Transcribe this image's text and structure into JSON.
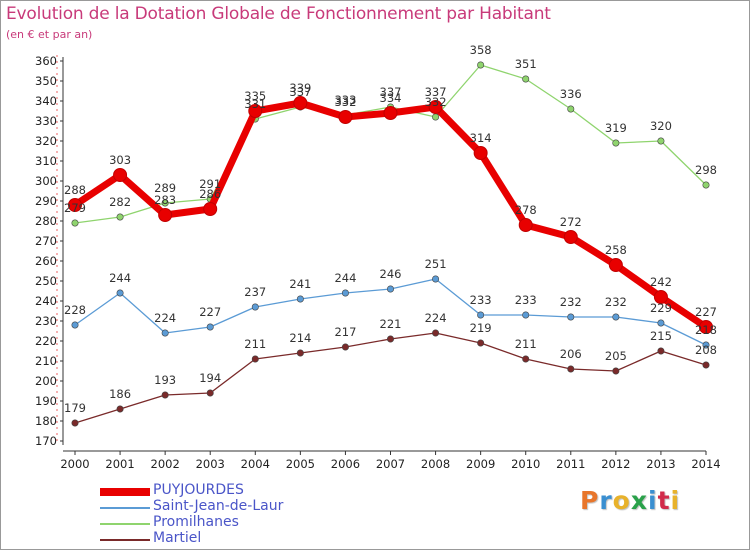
{
  "title": "Evolution de la Dotation Globale de Fonctionnement par Habitant",
  "subtitle": "(en € et par an)",
  "logo": {
    "text": "Proxiti",
    "colors": [
      "#e8762b",
      "#3a8fd1",
      "#e8b22b",
      "#2aa14a",
      "#3a8fd1",
      "#d12b4a",
      "#e8b22b"
    ]
  },
  "chart_data": {
    "type": "line",
    "x": [
      2000,
      2001,
      2002,
      2003,
      2004,
      2005,
      2006,
      2007,
      2008,
      2009,
      2010,
      2011,
      2012,
      2013,
      2014
    ],
    "ylim": [
      170,
      360
    ],
    "yticks": [
      170,
      180,
      190,
      200,
      210,
      220,
      230,
      240,
      250,
      260,
      270,
      280,
      290,
      300,
      310,
      320,
      330,
      340,
      350,
      360
    ],
    "grid": false,
    "legend_position": "bottom-left",
    "series": [
      {
        "name": "Martiel",
        "color": "#7a2a2a",
        "values": [
          179,
          186,
          193,
          194,
          211,
          214,
          217,
          221,
          224,
          219,
          211,
          206,
          205,
          215,
          208
        ]
      },
      {
        "name": "Saint-Jean-de-Laur",
        "color": "#5b9bd5",
        "values": [
          228,
          244,
          224,
          227,
          237,
          241,
          244,
          246,
          251,
          233,
          233,
          232,
          232,
          229,
          218
        ]
      },
      {
        "name": "Promilhanes",
        "color": "#8fd46e",
        "values": [
          279,
          282,
          289,
          291,
          331,
          337,
          333,
          337,
          332,
          358,
          351,
          336,
          319,
          320,
          298
        ]
      },
      {
        "name": "PUYJOURDES",
        "color": "#e80000",
        "values": [
          288,
          303,
          283,
          286,
          335,
          339,
          332,
          334,
          337,
          314,
          278,
          272,
          258,
          242,
          227
        ]
      }
    ],
    "legend_order": [
      "PUYJOURDES",
      "Saint-Jean-de-Laur",
      "Promilhanes",
      "Martiel"
    ]
  }
}
